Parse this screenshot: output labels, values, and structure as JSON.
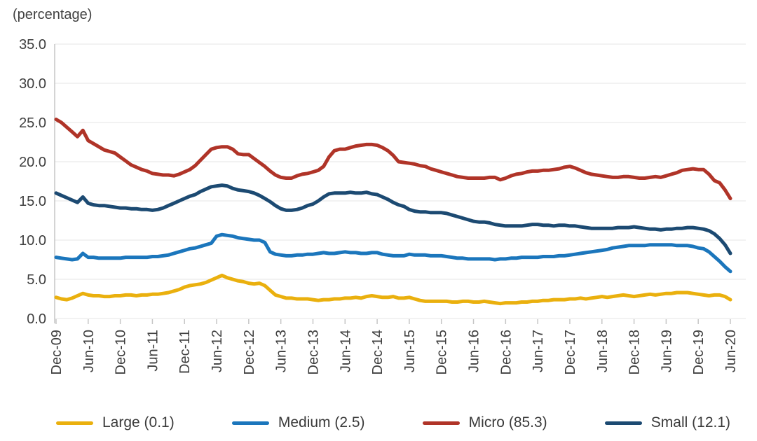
{
  "header": {
    "unit_label": "(percentage)"
  },
  "chart_data": {
    "type": "line",
    "title": "(percentage)",
    "ylabel": "percentage",
    "ylim": [
      0,
      35
    ],
    "ytick_step": 5,
    "y_tick_labels": [
      "0.0",
      "5.0",
      "10.0",
      "15.0",
      "20.0",
      "25.0",
      "30.0",
      "35.0"
    ],
    "grid": "horizontal",
    "legend_position": "bottom",
    "x_start": "Dec-09",
    "x_end": "Jun-20",
    "x_frequency": "monthly",
    "months_per_tick": 6,
    "x_tick_labels": [
      "Dec-09",
      "Jun-10",
      "Dec-10",
      "Jun-11",
      "Dec-11",
      "Jun-12",
      "Dec-12",
      "Jun-13",
      "Dec-13",
      "Jun-14",
      "Dec-14",
      "Jun-15",
      "Dec-15",
      "Jun-16",
      "Dec-16",
      "Jun-17",
      "Dec-17",
      "Jun-18",
      "Dec-18",
      "Jun-19",
      "Dec-19",
      "Jun-20"
    ],
    "series": [
      {
        "name": "Large (0.1)",
        "color": "#EAB00E",
        "values": [
          2.7,
          2.5,
          2.4,
          2.6,
          2.9,
          3.2,
          3.0,
          2.9,
          2.9,
          2.8,
          2.8,
          2.9,
          2.9,
          3.0,
          3.0,
          2.9,
          3.0,
          3.0,
          3.1,
          3.1,
          3.2,
          3.3,
          3.5,
          3.7,
          4.0,
          4.2,
          4.3,
          4.4,
          4.6,
          4.9,
          5.2,
          5.5,
          5.2,
          5.0,
          4.8,
          4.7,
          4.5,
          4.4,
          4.5,
          4.2,
          3.6,
          3.0,
          2.8,
          2.6,
          2.6,
          2.5,
          2.5,
          2.5,
          2.4,
          2.3,
          2.4,
          2.4,
          2.5,
          2.5,
          2.6,
          2.6,
          2.7,
          2.6,
          2.8,
          2.9,
          2.8,
          2.7,
          2.7,
          2.8,
          2.6,
          2.6,
          2.7,
          2.5,
          2.3,
          2.2,
          2.2,
          2.2,
          2.2,
          2.2,
          2.1,
          2.1,
          2.2,
          2.2,
          2.1,
          2.1,
          2.2,
          2.1,
          2.0,
          1.9,
          2.0,
          2.0,
          2.0,
          2.1,
          2.1,
          2.2,
          2.2,
          2.3,
          2.3,
          2.4,
          2.4,
          2.4,
          2.5,
          2.5,
          2.6,
          2.5,
          2.6,
          2.7,
          2.8,
          2.7,
          2.8,
          2.9,
          3.0,
          2.9,
          2.8,
          2.9,
          3.0,
          3.1,
          3.0,
          3.1,
          3.2,
          3.2,
          3.3,
          3.3,
          3.3,
          3.2,
          3.1,
          3.0,
          2.9,
          3.0,
          3.0,
          2.8,
          2.4
        ]
      },
      {
        "name": "Medium (2.5)",
        "color": "#1B76BC",
        "values": [
          7.8,
          7.7,
          7.6,
          7.5,
          7.6,
          8.3,
          7.8,
          7.8,
          7.7,
          7.7,
          7.7,
          7.7,
          7.7,
          7.8,
          7.8,
          7.8,
          7.8,
          7.8,
          7.9,
          7.9,
          8.0,
          8.1,
          8.3,
          8.5,
          8.7,
          8.9,
          9.0,
          9.2,
          9.4,
          9.6,
          10.5,
          10.7,
          10.6,
          10.5,
          10.3,
          10.2,
          10.1,
          10.0,
          10.0,
          9.7,
          8.5,
          8.2,
          8.1,
          8.0,
          8.0,
          8.1,
          8.1,
          8.2,
          8.2,
          8.3,
          8.4,
          8.3,
          8.3,
          8.4,
          8.5,
          8.4,
          8.4,
          8.3,
          8.3,
          8.4,
          8.4,
          8.2,
          8.1,
          8.0,
          8.0,
          8.0,
          8.2,
          8.1,
          8.1,
          8.1,
          8.0,
          8.0,
          8.0,
          7.9,
          7.8,
          7.7,
          7.7,
          7.6,
          7.6,
          7.6,
          7.6,
          7.6,
          7.5,
          7.6,
          7.6,
          7.7,
          7.7,
          7.8,
          7.8,
          7.8,
          7.8,
          7.9,
          7.9,
          7.9,
          8.0,
          8.0,
          8.1,
          8.2,
          8.3,
          8.4,
          8.5,
          8.6,
          8.7,
          8.8,
          9.0,
          9.1,
          9.2,
          9.3,
          9.3,
          9.3,
          9.3,
          9.4,
          9.4,
          9.4,
          9.4,
          9.4,
          9.3,
          9.3,
          9.3,
          9.2,
          9.0,
          8.9,
          8.5,
          7.9,
          7.3,
          6.6,
          6.0
        ]
      },
      {
        "name": "Micro (85.3)",
        "color": "#B03428",
        "values": [
          25.4,
          25.0,
          24.4,
          23.8,
          23.2,
          24.0,
          22.7,
          22.3,
          21.9,
          21.5,
          21.3,
          21.1,
          20.6,
          20.1,
          19.6,
          19.3,
          19.0,
          18.8,
          18.5,
          18.4,
          18.3,
          18.3,
          18.2,
          18.4,
          18.7,
          19.0,
          19.5,
          20.2,
          20.9,
          21.6,
          21.8,
          21.9,
          21.9,
          21.6,
          21.0,
          20.9,
          20.9,
          20.4,
          19.9,
          19.4,
          18.8,
          18.3,
          18.0,
          17.9,
          17.9,
          18.2,
          18.4,
          18.5,
          18.7,
          18.9,
          19.4,
          20.6,
          21.4,
          21.6,
          21.6,
          21.8,
          22.0,
          22.1,
          22.2,
          22.2,
          22.1,
          21.8,
          21.4,
          20.8,
          20.0,
          19.9,
          19.8,
          19.7,
          19.5,
          19.4,
          19.1,
          18.9,
          18.7,
          18.5,
          18.3,
          18.1,
          18.0,
          17.9,
          17.9,
          17.9,
          17.9,
          18.0,
          18.0,
          17.7,
          17.9,
          18.2,
          18.4,
          18.5,
          18.7,
          18.8,
          18.8,
          18.9,
          18.9,
          19.0,
          19.1,
          19.3,
          19.4,
          19.2,
          18.9,
          18.6,
          18.4,
          18.3,
          18.2,
          18.1,
          18.0,
          18.0,
          18.1,
          18.1,
          18.0,
          17.9,
          17.9,
          18.0,
          18.1,
          18.0,
          18.2,
          18.4,
          18.6,
          18.9,
          19.0,
          19.1,
          19.0,
          19.0,
          18.4,
          17.6,
          17.3,
          16.4,
          15.3
        ]
      },
      {
        "name": "Small (12.1)",
        "color": "#1C4A72",
        "values": [
          16.0,
          15.7,
          15.4,
          15.1,
          14.8,
          15.5,
          14.7,
          14.5,
          14.4,
          14.4,
          14.3,
          14.2,
          14.1,
          14.1,
          14.0,
          14.0,
          13.9,
          13.9,
          13.8,
          13.9,
          14.1,
          14.4,
          14.7,
          15.0,
          15.3,
          15.6,
          15.8,
          16.2,
          16.5,
          16.8,
          16.9,
          17.0,
          16.9,
          16.6,
          16.4,
          16.3,
          16.2,
          16.0,
          15.7,
          15.3,
          14.9,
          14.4,
          14.0,
          13.8,
          13.8,
          13.9,
          14.1,
          14.4,
          14.6,
          15.0,
          15.5,
          15.9,
          16.0,
          16.0,
          16.0,
          16.1,
          16.0,
          16.0,
          16.1,
          15.9,
          15.8,
          15.5,
          15.2,
          14.8,
          14.5,
          14.3,
          13.9,
          13.7,
          13.6,
          13.6,
          13.5,
          13.5,
          13.5,
          13.4,
          13.2,
          13.0,
          12.8,
          12.6,
          12.4,
          12.3,
          12.3,
          12.2,
          12.0,
          11.9,
          11.8,
          11.8,
          11.8,
          11.8,
          11.9,
          12.0,
          12.0,
          11.9,
          11.9,
          11.8,
          11.9,
          11.9,
          11.8,
          11.8,
          11.7,
          11.6,
          11.5,
          11.5,
          11.5,
          11.5,
          11.5,
          11.6,
          11.6,
          11.6,
          11.7,
          11.6,
          11.5,
          11.4,
          11.4,
          11.3,
          11.4,
          11.4,
          11.5,
          11.5,
          11.6,
          11.6,
          11.5,
          11.4,
          11.2,
          10.8,
          10.2,
          9.4,
          8.3
        ]
      }
    ],
    "style": {
      "gridline_color": "#E4E4E4",
      "axis_color": "#C6C6C6",
      "tick_label_color": "#3F3F3F",
      "line_width": 5
    }
  }
}
